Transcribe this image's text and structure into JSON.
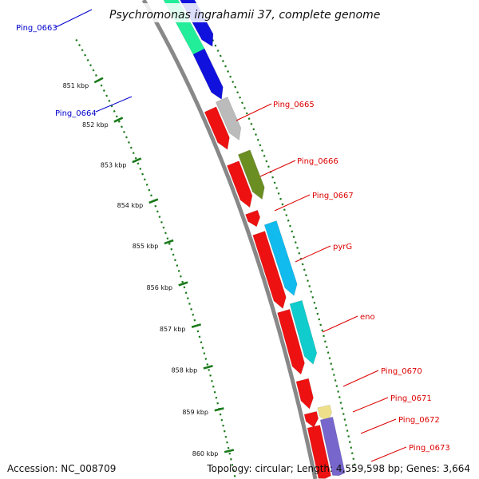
{
  "header": {
    "title": "Psychromonas ingrahamii 37, complete genome"
  },
  "footer": {
    "accession": "Accession: NC_008709",
    "summary": "Topology: circular; Length: 4,559,598 bp; Genes: 3,664"
  },
  "colors": {
    "backbone": "#888888",
    "tick": "#1a7a1a",
    "gene_red": "#ee1111",
    "label_blue": "#0000cc",
    "label_red": "#dd0000"
  },
  "ticks": [
    {
      "label": "851 kbp"
    },
    {
      "label": "852 kbp"
    },
    {
      "label": "853 kbp"
    },
    {
      "label": "854 kbp"
    },
    {
      "label": "855 kbp"
    },
    {
      "label": "856 kbp"
    },
    {
      "label": "857 kbp"
    },
    {
      "label": "858 kbp"
    },
    {
      "label": "859 kbp"
    },
    {
      "label": "860 kbp"
    }
  ],
  "genes": [
    {
      "label": "Ping_0663",
      "strand": "outer",
      "colors": [
        "#22ee99",
        "#1111dd"
      ]
    },
    {
      "label": "Ping_0664",
      "strand": "outer",
      "colors": [
        "#1111dd"
      ]
    },
    {
      "label": "Ping_0665",
      "strand": "inner",
      "colors": [
        "#ee1111",
        "#bbbbbb"
      ]
    },
    {
      "label": "Ping_0666",
      "strand": "inner",
      "colors": [
        "#ee1111",
        "#6b8e23"
      ]
    },
    {
      "label": "Ping_0667",
      "strand": "inner",
      "colors": [
        "#ee1111"
      ]
    },
    {
      "label": "pyrG",
      "strand": "inner",
      "colors": [
        "#ee1111",
        "#11bbee"
      ]
    },
    {
      "label": "eno",
      "strand": "inner",
      "colors": [
        "#ee1111",
        "#11cccc"
      ]
    },
    {
      "label": "Ping_0670",
      "strand": "inner",
      "colors": [
        "#ee1111"
      ]
    },
    {
      "label": "Ping_0671",
      "strand": "inner",
      "colors": [
        "#ee1111",
        "#eee08a"
      ]
    },
    {
      "label": "Ping_0672",
      "strand": "inner",
      "colors": [
        "#ee1111",
        "#7766cc"
      ]
    },
    {
      "label": "Ping_0673",
      "strand": "inner",
      "colors": [
        "#ee1111",
        "#7766cc"
      ]
    }
  ]
}
